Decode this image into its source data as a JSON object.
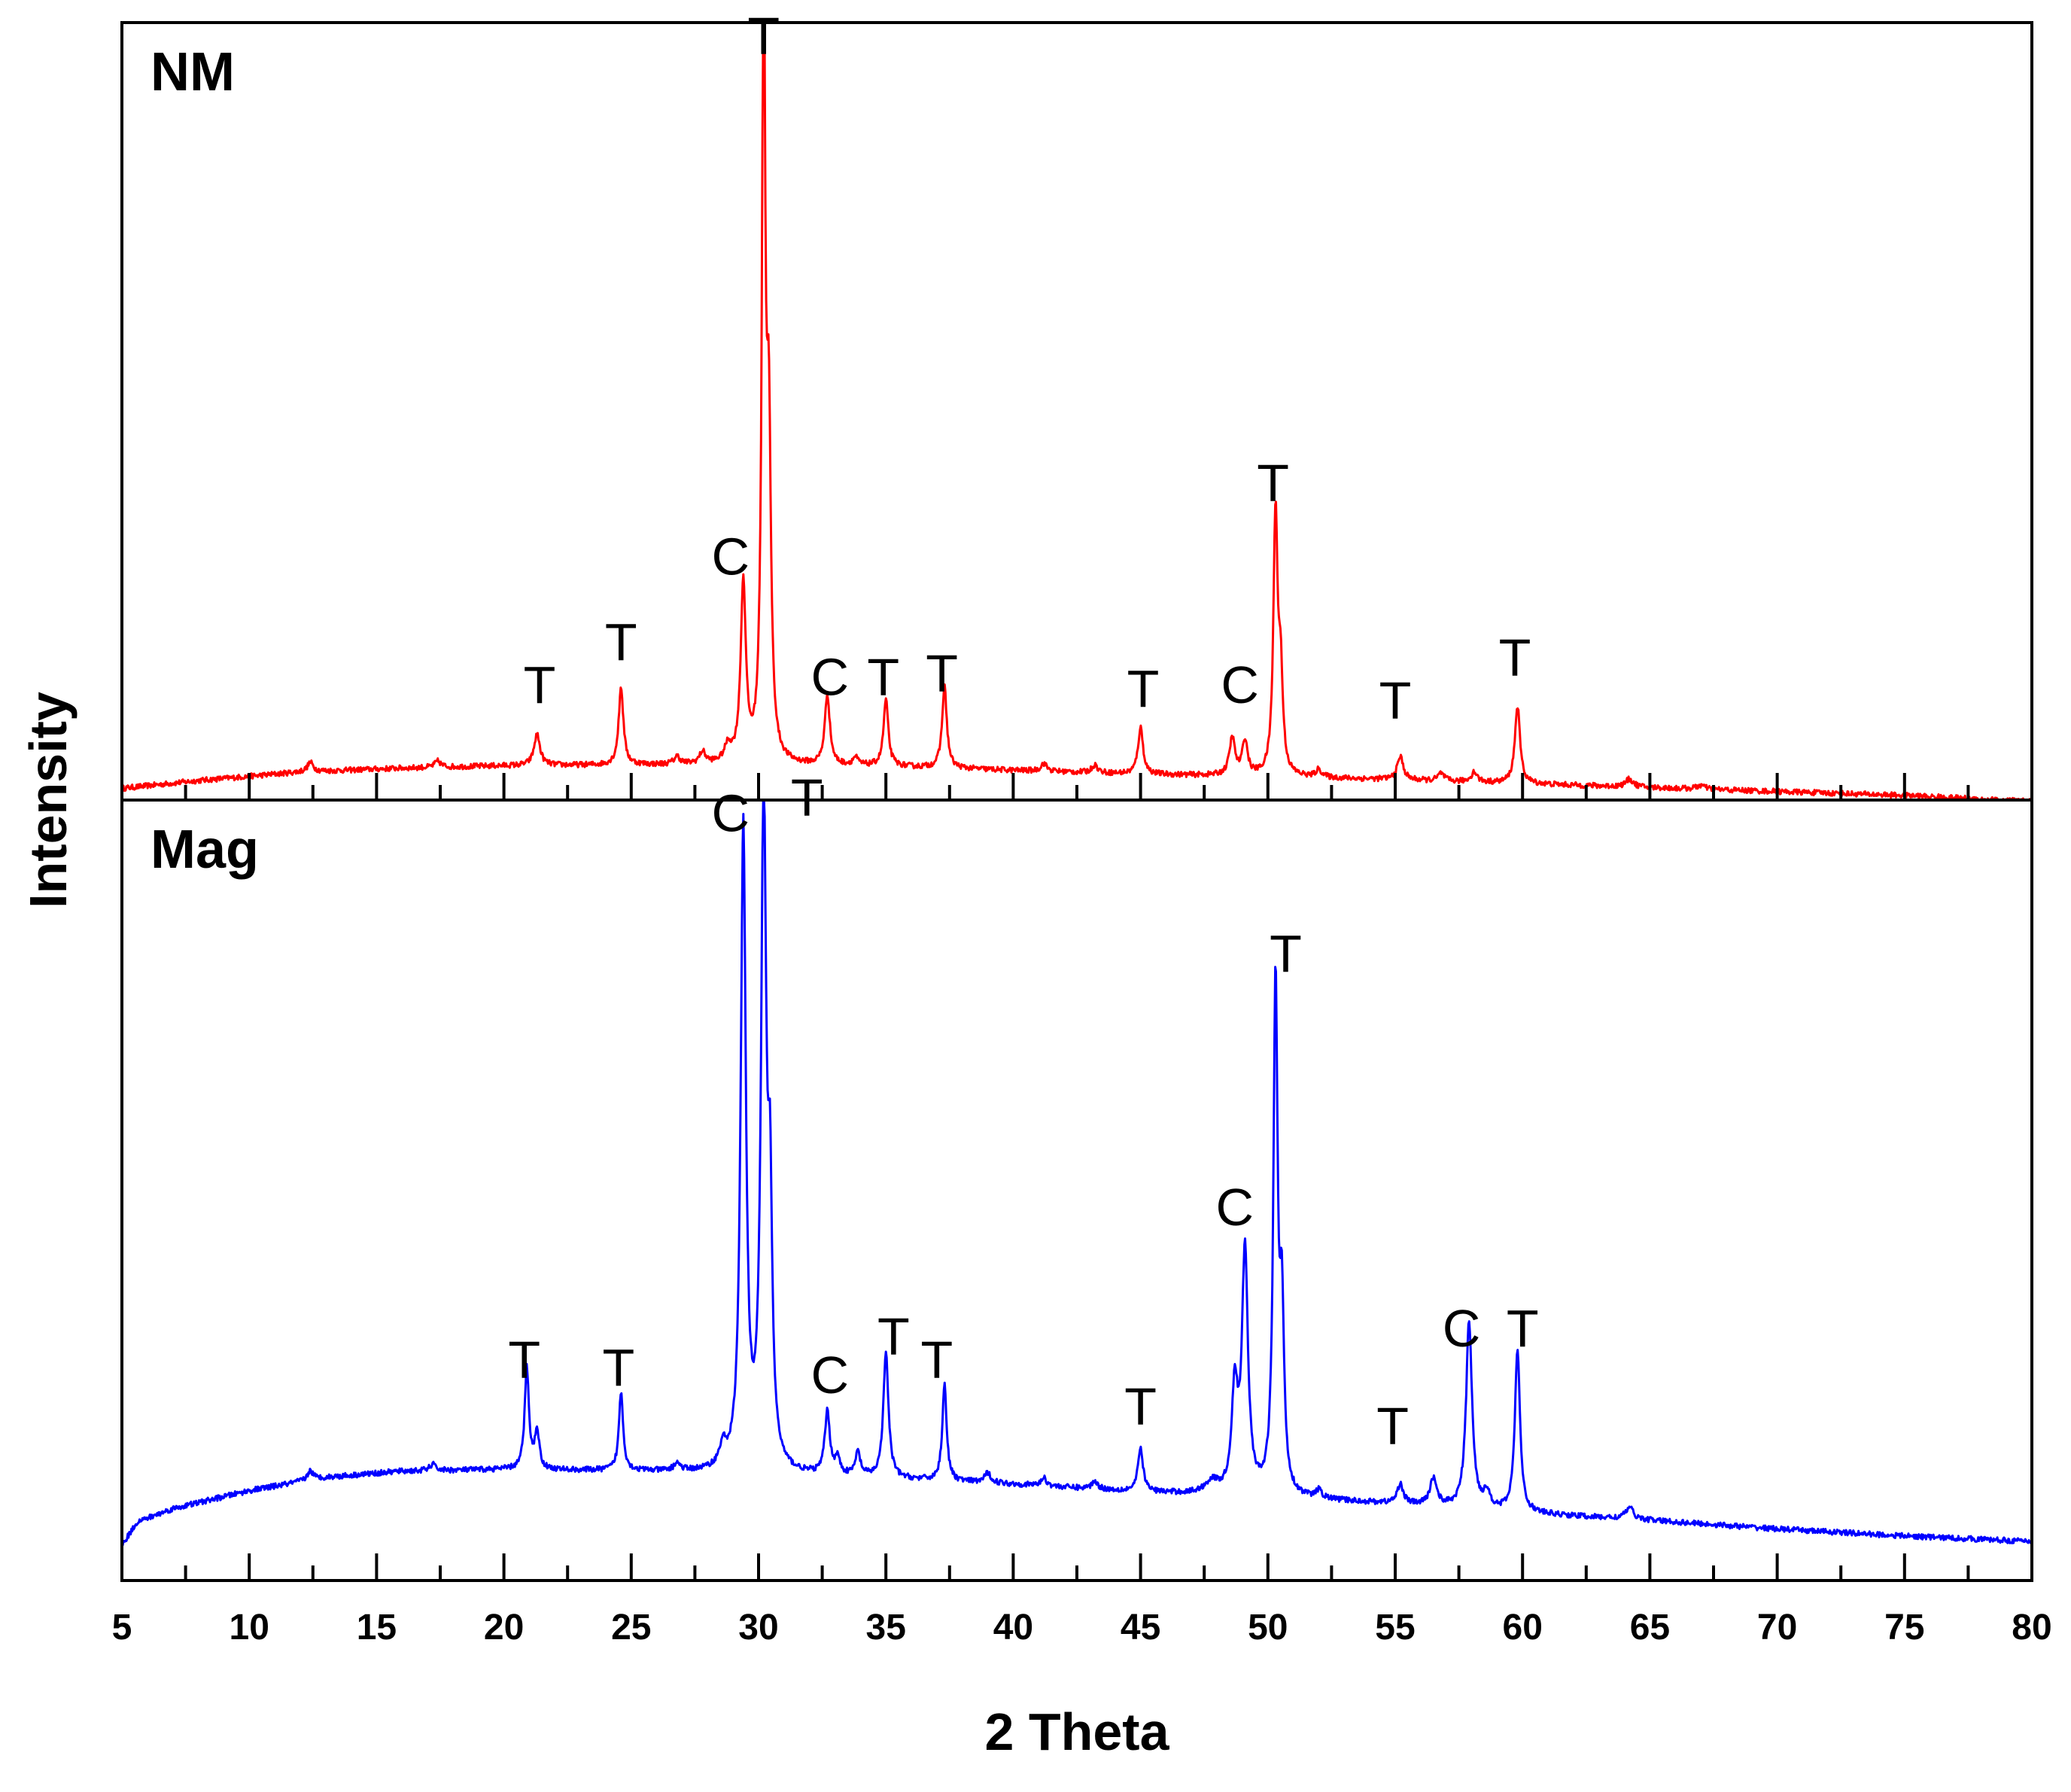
{
  "chart_data": {
    "type": "line",
    "xlabel": "2 Theta",
    "ylabel": "Intensity",
    "xlim": [
      5,
      80
    ],
    "x_ticks": [
      5,
      10,
      15,
      20,
      25,
      30,
      35,
      40,
      45,
      50,
      55,
      60,
      65,
      70,
      75,
      80
    ],
    "x_tick_labels": [
      "5",
      "10",
      "15",
      "20",
      "25",
      "30",
      "35",
      "40",
      "45",
      "50",
      "55",
      "60",
      "65",
      "70",
      "75",
      "80"
    ],
    "ylim": [
      0,
      100
    ],
    "panels": [
      {
        "name": "NM",
        "color": "#ff0000",
        "baseline": [
          [
            5,
            1.5
          ],
          [
            8,
            2.5
          ],
          [
            12,
            3.6
          ],
          [
            16,
            4.1
          ],
          [
            20,
            4.4
          ],
          [
            25,
            4.5
          ],
          [
            30,
            4.5
          ],
          [
            35,
            4.3
          ],
          [
            40,
            3.8
          ],
          [
            45,
            3.3
          ],
          [
            50,
            3.0
          ],
          [
            55,
            2.6
          ],
          [
            60,
            2.1
          ],
          [
            65,
            1.6
          ],
          [
            70,
            1.1
          ],
          [
            75,
            0.6
          ],
          [
            80,
            -0.2
          ]
        ],
        "peaks": [
          {
            "x": 12.4,
            "h": 1.2,
            "w": 0.14
          },
          {
            "x": 17.4,
            "h": 0.8,
            "w": 0.14
          },
          {
            "x": 21.3,
            "h": 4.0,
            "w": 0.14
          },
          {
            "x": 24.6,
            "h": 10.0,
            "w": 0.11
          },
          {
            "x": 26.8,
            "h": 1.0,
            "w": 0.14
          },
          {
            "x": 27.8,
            "h": 1.5,
            "w": 0.14
          },
          {
            "x": 28.8,
            "h": 2.0,
            "w": 0.16
          },
          {
            "x": 29.4,
            "h": 23.0,
            "w": 0.12
          },
          {
            "x": 30.2,
            "h": 100.0,
            "w": 0.08
          },
          {
            "x": 30.4,
            "h": 40.0,
            "w": 0.1
          },
          {
            "x": 32.7,
            "h": 9.0,
            "w": 0.12
          },
          {
            "x": 33.8,
            "h": 1.0,
            "w": 0.12
          },
          {
            "x": 35.0,
            "h": 8.5,
            "w": 0.11
          },
          {
            "x": 37.3,
            "h": 10.5,
            "w": 0.11
          },
          {
            "x": 41.2,
            "h": 1.0,
            "w": 0.14
          },
          {
            "x": 43.2,
            "h": 1.0,
            "w": 0.14
          },
          {
            "x": 45.0,
            "h": 6.0,
            "w": 0.12
          },
          {
            "x": 48.6,
            "h": 4.8,
            "w": 0.13
          },
          {
            "x": 49.1,
            "h": 4.5,
            "w": 0.12
          },
          {
            "x": 50.3,
            "h": 33.5,
            "w": 0.1
          },
          {
            "x": 50.5,
            "h": 12.0,
            "w": 0.1
          },
          {
            "x": 52.0,
            "h": 1.0,
            "w": 0.14
          },
          {
            "x": 55.2,
            "h": 3.0,
            "w": 0.14
          },
          {
            "x": 56.8,
            "h": 1.0,
            "w": 0.14
          },
          {
            "x": 58.1,
            "h": 1.3,
            "w": 0.14
          },
          {
            "x": 59.8,
            "h": 10.0,
            "w": 0.12
          },
          {
            "x": 64.2,
            "h": 1.0,
            "w": 0.18
          },
          {
            "x": 67.0,
            "h": 0.5,
            "w": 0.18
          }
        ],
        "peak_labels": [
          {
            "text": "T",
            "x": 30.2,
            "y": 96
          },
          {
            "text": "C",
            "x": 28.9,
            "y": 29
          },
          {
            "text": "T",
            "x": 21.4,
            "y": 12.5
          },
          {
            "text": "T",
            "x": 24.6,
            "y": 18
          },
          {
            "text": "C",
            "x": 32.8,
            "y": 13.5
          },
          {
            "text": "T",
            "x": 34.9,
            "y": 13.5
          },
          {
            "text": "T",
            "x": 37.2,
            "y": 14
          },
          {
            "text": "T",
            "x": 45.1,
            "y": 12
          },
          {
            "text": "C",
            "x": 48.9,
            "y": 12.5
          },
          {
            "text": "T",
            "x": 50.2,
            "y": 38.5
          },
          {
            "text": "T",
            "x": 55.0,
            "y": 10.5
          },
          {
            "text": "T",
            "x": 59.7,
            "y": 16
          }
        ]
      },
      {
        "name": "Mag",
        "color": "#0000ff",
        "baseline": [
          [
            5,
            4.5
          ],
          [
            5.6,
            7.5
          ],
          [
            7,
            9.2
          ],
          [
            10,
            11.5
          ],
          [
            13,
            13.2
          ],
          [
            16,
            14.0
          ],
          [
            20,
            14.2
          ],
          [
            25,
            14.0
          ],
          [
            30,
            13.6
          ],
          [
            35,
            13.0
          ],
          [
            40,
            12.3
          ],
          [
            45,
            11.3
          ],
          [
            50,
            10.6
          ],
          [
            55,
            9.8
          ],
          [
            60,
            8.6
          ],
          [
            65,
            7.7
          ],
          [
            70,
            6.6
          ],
          [
            75,
            5.7
          ],
          [
            80,
            5.0
          ]
        ],
        "peaks": [
          {
            "x": 12.4,
            "h": 1.2,
            "w": 0.14
          },
          {
            "x": 17.2,
            "h": 0.8,
            "w": 0.14
          },
          {
            "x": 20.9,
            "h": 13.0,
            "w": 0.1
          },
          {
            "x": 21.3,
            "h": 5.0,
            "w": 0.1
          },
          {
            "x": 24.6,
            "h": 10.0,
            "w": 0.1
          },
          {
            "x": 26.8,
            "h": 1.0,
            "w": 0.14
          },
          {
            "x": 28.6,
            "h": 2.5,
            "w": 0.16
          },
          {
            "x": 29.4,
            "h": 82.0,
            "w": 0.12
          },
          {
            "x": 30.2,
            "h": 86.0,
            "w": 0.12
          },
          {
            "x": 30.45,
            "h": 30.0,
            "w": 0.1
          },
          {
            "x": 32.7,
            "h": 8.0,
            "w": 0.12
          },
          {
            "x": 33.1,
            "h": 2.0,
            "w": 0.12
          },
          {
            "x": 33.9,
            "h": 3.0,
            "w": 0.12
          },
          {
            "x": 35.0,
            "h": 16.0,
            "w": 0.12
          },
          {
            "x": 37.3,
            "h": 12.5,
            "w": 0.1
          },
          {
            "x": 39.0,
            "h": 1.2,
            "w": 0.16
          },
          {
            "x": 41.2,
            "h": 1.0,
            "w": 0.14
          },
          {
            "x": 43.2,
            "h": 1.0,
            "w": 0.14
          },
          {
            "x": 45.0,
            "h": 5.5,
            "w": 0.12
          },
          {
            "x": 47.8,
            "h": 1.5,
            "w": 0.3
          },
          {
            "x": 48.7,
            "h": 13.0,
            "w": 0.14
          },
          {
            "x": 49.1,
            "h": 31.0,
            "w": 0.14
          },
          {
            "x": 50.3,
            "h": 65.5,
            "w": 0.1
          },
          {
            "x": 50.55,
            "h": 22.0,
            "w": 0.1
          },
          {
            "x": 52.0,
            "h": 1.0,
            "w": 0.14
          },
          {
            "x": 55.2,
            "h": 2.5,
            "w": 0.14
          },
          {
            "x": 56.5,
            "h": 3.5,
            "w": 0.16
          },
          {
            "x": 57.9,
            "h": 24.0,
            "w": 0.14
          },
          {
            "x": 58.6,
            "h": 2.0,
            "w": 0.16
          },
          {
            "x": 59.8,
            "h": 21.0,
            "w": 0.12
          },
          {
            "x": 64.2,
            "h": 1.5,
            "w": 0.18
          }
        ],
        "peak_labels": [
          {
            "text": "C",
            "x": 28.9,
            "y": 96
          },
          {
            "text": "T",
            "x": 31.9,
            "y": 98
          },
          {
            "text": "T",
            "x": 20.8,
            "y": 26
          },
          {
            "text": "T",
            "x": 24.5,
            "y": 25
          },
          {
            "text": "C",
            "x": 32.8,
            "y": 24
          },
          {
            "text": "T",
            "x": 35.3,
            "y": 29
          },
          {
            "text": "T",
            "x": 37.0,
            "y": 26
          },
          {
            "text": "T",
            "x": 45.0,
            "y": 20
          },
          {
            "text": "C",
            "x": 48.7,
            "y": 45.5
          },
          {
            "text": "T",
            "x": 50.7,
            "y": 78
          },
          {
            "text": "T",
            "x": 54.9,
            "y": 17.5
          },
          {
            "text": "C",
            "x": 57.6,
            "y": 30
          },
          {
            "text": "T",
            "x": 60.0,
            "y": 30
          }
        ]
      }
    ]
  }
}
